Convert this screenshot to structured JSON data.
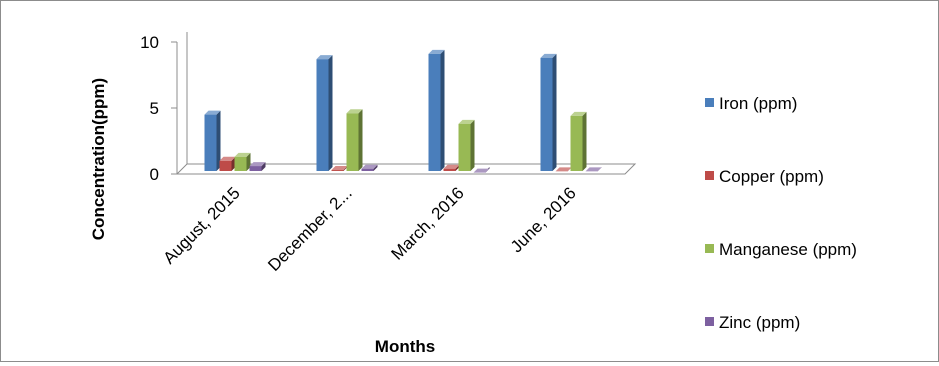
{
  "chart_data": {
    "type": "bar",
    "title": "",
    "xlabel": "Months",
    "ylabel": "Concentration(ppm)",
    "ylim": [
      0,
      10
    ],
    "yticks": [
      0,
      5,
      10
    ],
    "grid": false,
    "legend_position": "right",
    "categories": [
      "August, 2015",
      "December, 2...",
      "March, 2016",
      "June, 2016"
    ],
    "series": [
      {
        "name": "Iron (ppm)",
        "color": "#4a7ebb",
        "values": [
          4.5,
          8.7,
          9.1,
          8.8
        ]
      },
      {
        "name": "Copper (ppm)",
        "color": "#be4b48",
        "values": [
          1.0,
          0.3,
          0.4,
          0.2
        ]
      },
      {
        "name": "Manganese (ppm)",
        "color": "#98b954",
        "values": [
          1.3,
          4.6,
          3.8,
          4.4
        ]
      },
      {
        "name": "Zinc (ppm)",
        "color": "#7d60a0",
        "values": [
          0.6,
          0.4,
          0.1,
          0.2
        ]
      }
    ]
  }
}
